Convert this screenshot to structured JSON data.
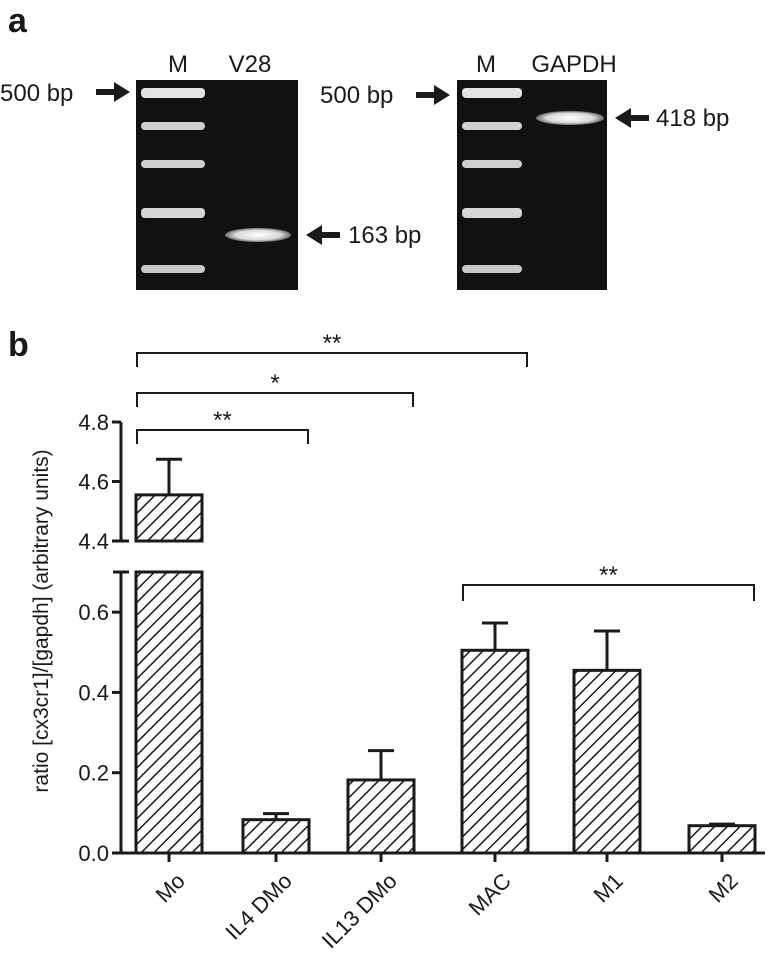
{
  "panel_a": {
    "label": "a",
    "gel_left": {
      "lanes": [
        "M",
        "V28"
      ],
      "marker_label": "500 bp",
      "band_label": "163 bp"
    },
    "gel_right": {
      "lanes": [
        "M",
        "GAPDH"
      ],
      "marker_label": "500 bp",
      "band_label": "418 bp"
    }
  },
  "panel_b": {
    "label": "b"
  },
  "chart_data": {
    "type": "bar",
    "categories": [
      "Mo",
      "IL4 DMo",
      "IL13 DMo",
      "MAC",
      "M1",
      "M2"
    ],
    "values": [
      4.555,
      0.083,
      0.182,
      0.505,
      0.455,
      0.068
    ],
    "error": [
      0.12,
      0.015,
      0.073,
      0.068,
      0.098,
      0.004
    ],
    "ylabel": "ratio [cx3cr1]/[gapdh] (arbitrary units)",
    "xlabel": "",
    "y_axis_break": true,
    "ylim_lower": [
      0,
      0.7
    ],
    "ylim_upper": [
      4.4,
      4.8
    ],
    "yticks_lower": [
      "0.0",
      "0.2",
      "0.4",
      "0.6"
    ],
    "yticks_upper": [
      "4.4",
      "4.6",
      "4.8"
    ],
    "bar_fill": "diagonal hatch",
    "significance": [
      {
        "from": "Mo",
        "to": "MAC",
        "label": "**"
      },
      {
        "from": "Mo",
        "to": "IL13 DMo",
        "label": "*"
      },
      {
        "from": "Mo",
        "to": "IL4 DMo",
        "label": "**"
      },
      {
        "from": "MAC",
        "to": "M2",
        "label": "**"
      }
    ]
  }
}
